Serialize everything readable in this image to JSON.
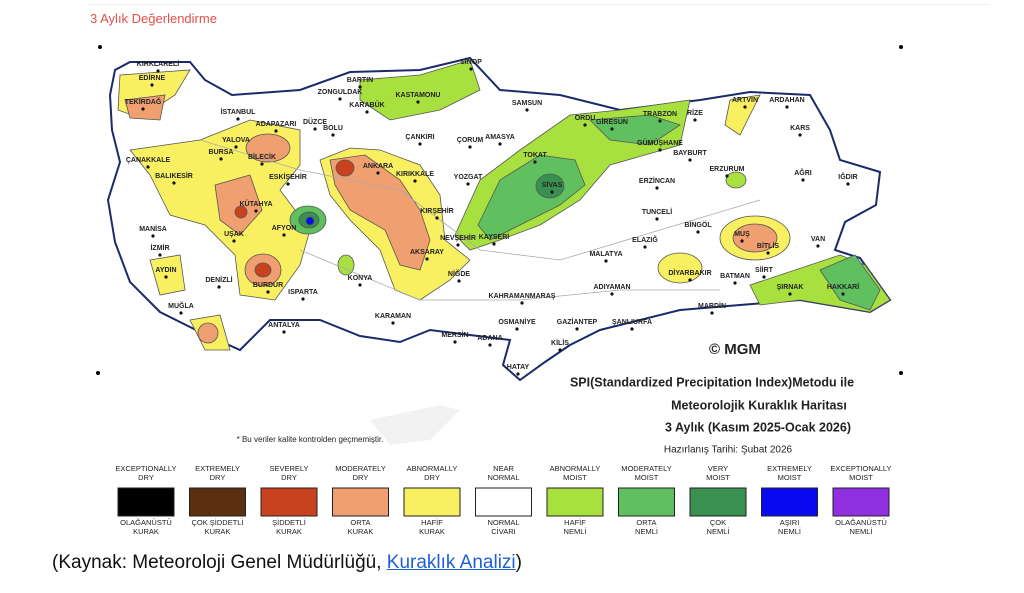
{
  "header": {
    "title": "3 Aylık Değerlendirme"
  },
  "map": {
    "cities": [
      "KIRKLARELİ",
      "EDİRNE",
      "TEKİRDAĞ",
      "İSTANBUL",
      "ADAPAZARI",
      "DÜZCE",
      "BOLU",
      "YALOVA",
      "BURSA",
      "BİLECİK",
      "ÇANAKKALE",
      "SİNOP",
      "BARTIN",
      "ZONGULDAK",
      "KARABÜK",
      "KASTAMONU",
      "SAMSUN",
      "ORDU",
      "GİRESUN",
      "TRABZON",
      "RİZE",
      "ARTVİN",
      "ARDAHAN",
      "KARS",
      "ÇANKIRI",
      "ÇORUM",
      "AMASYA",
      "TOKAT",
      "GÜMÜŞHANE",
      "BAYBURT",
      "ANKARA",
      "KIRIKKALE",
      "YOZGAT",
      "SİVAS",
      "ERZİNCAN",
      "ERZURUM",
      "AĞRI",
      "IĞDIR",
      "BALIKESİR",
      "ESKİŞEHİR",
      "KÜTAHYA",
      "KIRŞEHİR",
      "TUNCELİ",
      "BİNGÖL",
      "MANİSA",
      "UŞAK",
      "AFYON",
      "NEVŞEHİR",
      "KAYSERİ",
      "ELAZIĞ",
      "MUŞ",
      "BİTLİS",
      "VAN",
      "İZMİR",
      "MALATYA",
      "AKSARAY",
      "NİĞDE",
      "AYDIN",
      "DENİZLİ",
      "ISPARTA",
      "BURDUR",
      "KONYA",
      "DİYARBAKIR",
      "BATMAN",
      "SİİRT",
      "ŞIRNAK",
      "HAKKARİ",
      "MUĞLA",
      "KAHRAMANMARAŞ",
      "ADIYAMAN",
      "ANTALYA",
      "KARAMAN",
      "OSMANİYE",
      "GAZİANTEP",
      "ŞANLIURFA",
      "MARDİN",
      "MERSİN",
      "ADANA",
      "KİLİS",
      "HATAY"
    ],
    "copyright": "© MGM",
    "title_lines": [
      "SPI(Standardized Precipitation Index)Metodu ile",
      "Meteorolojik Kuraklık Haritası",
      "3 Aylık (Kasım 2025-Ocak 2026)"
    ],
    "date": "Hazırlanış Tarihi: Şubat 2026",
    "note": "* Bu veriler kalite kontrolden geçmemiştir."
  },
  "legend": [
    {
      "en": [
        "EXCEPTIONALLY",
        "DRY"
      ],
      "tr": [
        "OLAĞANÜSTÜ",
        "KURAK"
      ],
      "color": "#000000"
    },
    {
      "en": [
        "EXTREMELY",
        "DRY"
      ],
      "tr": [
        "ÇOK ŞİDDETLİ",
        "KURAK"
      ],
      "color": "#5c2f10"
    },
    {
      "en": [
        "SEVERELY",
        "DRY"
      ],
      "tr": [
        "ŞİDDETLİ",
        "KURAK"
      ],
      "color": "#c8431d"
    },
    {
      "en": [
        "MODERATELY",
        "DRY"
      ],
      "tr": [
        "ORTA",
        "KURAK"
      ],
      "color": "#f0a070"
    },
    {
      "en": [
        "ABNORMALLY",
        "DRY"
      ],
      "tr": [
        "HAFİF",
        "KURAK"
      ],
      "color": "#f8f060"
    },
    {
      "en": [
        "NEAR",
        "NORMAL"
      ],
      "tr": [
        "NORMAL",
        "CİVARI"
      ],
      "color": "#ffffff"
    },
    {
      "en": [
        "ABNORMALLY",
        "MOIST"
      ],
      "tr": [
        "HAFİF",
        "NEMLİ"
      ],
      "color": "#a8e040"
    },
    {
      "en": [
        "MODERATELY",
        "MOIST"
      ],
      "tr": [
        "ORTA",
        "NEMLİ"
      ],
      "color": "#60c060"
    },
    {
      "en": [
        "VERY",
        "MOIST"
      ],
      "tr": [
        "ÇOK",
        "NEMLİ"
      ],
      "color": "#3a9050"
    },
    {
      "en": [
        "EXTREMELY",
        "MOIST"
      ],
      "tr": [
        "AŞIRI",
        "NEMLİ"
      ],
      "color": "#0a0af0"
    },
    {
      "en": [
        "EXCEPTIONALLY",
        "MOIST"
      ],
      "tr": [
        "OLAĞANÜSTÜ",
        "NEMLİ"
      ],
      "color": "#9030e0"
    }
  ],
  "caption": {
    "prefix": "(Kaynak: Meteoroloji Genel Müdürlüğü, ",
    "link": "Kuraklık Analizi",
    "suffix": ")"
  }
}
